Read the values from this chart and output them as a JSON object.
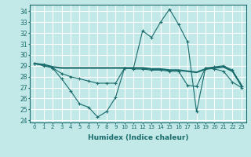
{
  "xlabel": "Humidex (Indice chaleur)",
  "bg_color": "#c2e8e8",
  "grid_color": "#ffffff",
  "line_color": "#1a6b6b",
  "xlim": [
    -0.5,
    23.5
  ],
  "ylim": [
    23.8,
    34.6
  ],
  "yticks": [
    24,
    25,
    26,
    27,
    28,
    29,
    30,
    31,
    32,
    33,
    34
  ],
  "xticks": [
    0,
    1,
    2,
    3,
    4,
    5,
    6,
    7,
    8,
    9,
    10,
    11,
    12,
    13,
    14,
    15,
    16,
    17,
    18,
    19,
    20,
    21,
    22,
    23
  ],
  "line1_x": [
    0,
    1,
    2,
    3,
    4,
    5,
    6,
    7,
    8,
    9,
    10,
    11,
    12,
    13,
    14,
    15,
    16,
    17,
    18,
    19,
    20,
    21,
    22,
    23
  ],
  "line1_y": [
    29.2,
    29.1,
    28.8,
    27.8,
    26.7,
    25.5,
    25.2,
    24.3,
    24.8,
    26.1,
    28.8,
    28.8,
    32.2,
    31.6,
    33.0,
    34.2,
    32.8,
    31.2,
    24.8,
    28.8,
    28.9,
    29.0,
    28.6,
    27.1
  ],
  "line2_x": [
    0,
    1,
    2,
    3,
    4,
    5,
    6,
    7,
    8,
    9,
    10,
    11,
    12,
    13,
    14,
    15,
    16,
    17,
    18,
    19,
    20,
    21,
    22,
    23
  ],
  "line2_y": [
    29.2,
    29.0,
    28.8,
    28.3,
    28.0,
    27.8,
    27.6,
    27.4,
    27.4,
    27.4,
    28.8,
    28.7,
    28.7,
    28.6,
    28.6,
    28.5,
    28.5,
    27.2,
    27.1,
    28.8,
    28.7,
    28.5,
    27.5,
    27.0
  ],
  "line3_x": [
    0,
    1,
    2,
    3,
    4,
    5,
    6,
    7,
    8,
    9,
    10,
    11,
    12,
    13,
    14,
    15,
    16,
    17,
    18,
    19,
    20,
    21,
    22,
    23
  ],
  "line3_y": [
    29.2,
    29.1,
    28.9,
    28.8,
    28.8,
    28.8,
    28.8,
    28.8,
    28.8,
    28.8,
    28.8,
    28.8,
    28.8,
    28.7,
    28.7,
    28.6,
    28.6,
    28.5,
    28.4,
    28.7,
    28.8,
    28.9,
    28.5,
    27.2
  ]
}
